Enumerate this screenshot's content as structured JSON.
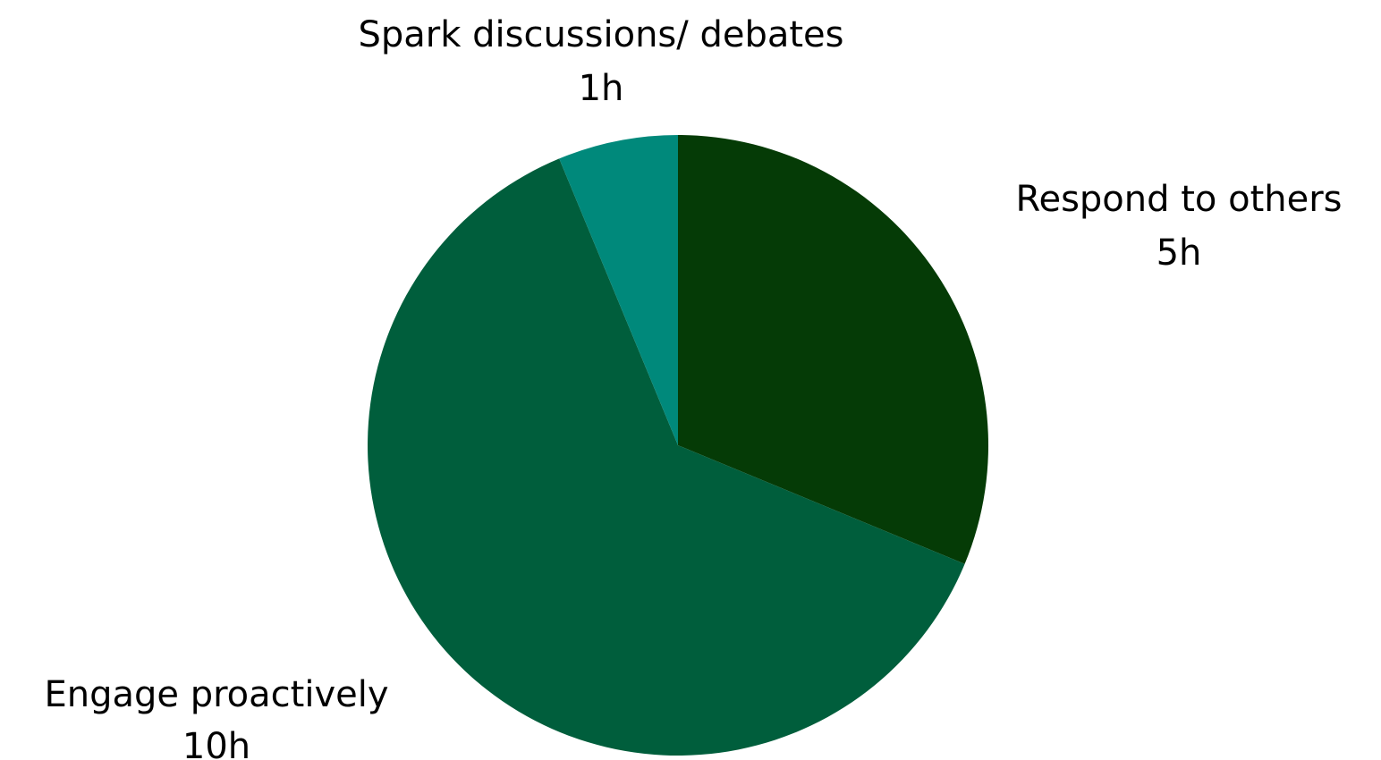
{
  "chart_data": {
    "type": "pie",
    "title": "",
    "unit": "h",
    "slices": [
      {
        "label": "Respond to others",
        "value": 5,
        "value_label": "5h",
        "color": "#053b06"
      },
      {
        "label": "Engage proactively",
        "value": 10,
        "value_label": "10h",
        "color": "#005e3c"
      },
      {
        "label": "Spark discussions/ debates",
        "value": 1,
        "value_label": "1h",
        "color": "#00897b"
      }
    ],
    "start_angle": "12 o'clock",
    "direction": "clockwise",
    "legend": "none",
    "data_labels": "outside, category name above value"
  }
}
